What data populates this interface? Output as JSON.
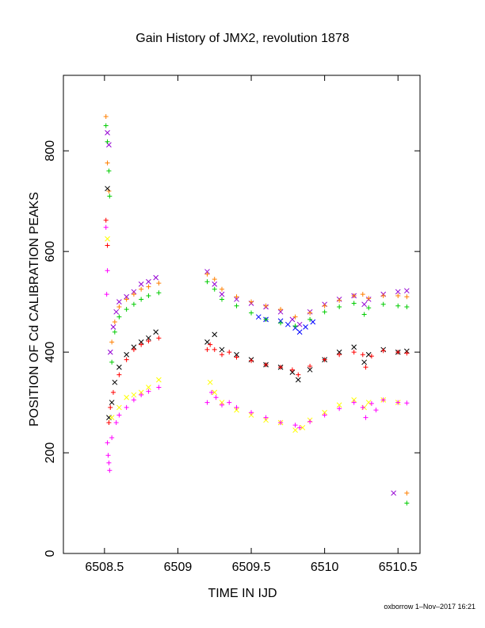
{
  "chart_data": {
    "type": "scatter",
    "title": "Gain History of JMX2, revolution 1878",
    "xlabel": "TIME IN IJD",
    "ylabel": "POSITION OF Cd CALIBRATION PEAKS",
    "xlim": [
      6508.22,
      6510.65
    ],
    "ylim": [
      0,
      950
    ],
    "xticks": [
      6508.5,
      6509,
      6509.5,
      6510,
      6510.5
    ],
    "xtick_labels": [
      "6508.5",
      "6509",
      "6509.5",
      "6510",
      "6510.5"
    ],
    "yticks": [
      0,
      200,
      400,
      600,
      800
    ],
    "ytick_labels": [
      "0",
      "200",
      "400",
      "600",
      "800"
    ],
    "grid": false,
    "footer": "oxborrow  1–Nov–2017 16:21",
    "series": [
      {
        "color": "#9400d3",
        "marker": "x",
        "points": [
          [
            6508.52,
            836
          ],
          [
            6508.53,
            812
          ],
          [
            6508.54,
            400
          ],
          [
            6508.56,
            450
          ],
          [
            6508.58,
            480
          ],
          [
            6508.6,
            500
          ],
          [
            6508.65,
            510
          ],
          [
            6508.7,
            520
          ],
          [
            6508.75,
            535
          ],
          [
            6508.8,
            540
          ],
          [
            6508.85,
            548
          ],
          [
            6509.2,
            560
          ],
          [
            6509.25,
            535
          ],
          [
            6509.3,
            515
          ],
          [
            6509.4,
            505
          ],
          [
            6509.5,
            497
          ],
          [
            6509.6,
            490
          ],
          [
            6509.7,
            480
          ],
          [
            6509.78,
            465
          ],
          [
            6509.83,
            455
          ],
          [
            6509.9,
            480
          ],
          [
            6510.0,
            495
          ],
          [
            6510.1,
            505
          ],
          [
            6510.2,
            512
          ],
          [
            6510.27,
            495
          ],
          [
            6510.3,
            505
          ],
          [
            6510.4,
            515
          ],
          [
            6510.5,
            520
          ],
          [
            6510.56,
            522
          ],
          [
            6510.47,
            120
          ]
        ]
      },
      {
        "color": "#ff7f00",
        "marker": "+",
        "points": [
          [
            6508.51,
            868
          ],
          [
            6508.52,
            776
          ],
          [
            6508.53,
            720
          ],
          [
            6508.55,
            420
          ],
          [
            6508.57,
            460
          ],
          [
            6508.6,
            490
          ],
          [
            6508.65,
            505
          ],
          [
            6508.7,
            515
          ],
          [
            6508.75,
            525
          ],
          [
            6508.8,
            530
          ],
          [
            6508.87,
            537
          ],
          [
            6509.2,
            555
          ],
          [
            6509.25,
            545
          ],
          [
            6509.3,
            525
          ],
          [
            6509.4,
            510
          ],
          [
            6509.5,
            500
          ],
          [
            6509.6,
            492
          ],
          [
            6509.7,
            485
          ],
          [
            6509.8,
            470
          ],
          [
            6509.9,
            478
          ],
          [
            6510.0,
            492
          ],
          [
            6510.1,
            503
          ],
          [
            6510.2,
            512
          ],
          [
            6510.26,
            515
          ],
          [
            6510.3,
            507
          ],
          [
            6510.4,
            512
          ],
          [
            6510.5,
            512
          ],
          [
            6510.56,
            510
          ],
          [
            6510.56,
            120
          ]
        ]
      },
      {
        "color": "#0000ff",
        "marker": "x",
        "points": [
          [
            6509.55,
            470
          ],
          [
            6509.6,
            465
          ],
          [
            6509.7,
            462
          ],
          [
            6509.75,
            455
          ],
          [
            6509.8,
            448
          ],
          [
            6509.83,
            440
          ],
          [
            6509.87,
            450
          ],
          [
            6509.92,
            460
          ]
        ]
      },
      {
        "color": "#00cc00",
        "marker": "+",
        "points": [
          [
            6508.51,
            850
          ],
          [
            6508.52,
            818
          ],
          [
            6508.53,
            760
          ],
          [
            6508.535,
            710
          ],
          [
            6508.55,
            380
          ],
          [
            6508.57,
            440
          ],
          [
            6508.6,
            470
          ],
          [
            6508.65,
            485
          ],
          [
            6508.7,
            495
          ],
          [
            6508.75,
            505
          ],
          [
            6508.8,
            512
          ],
          [
            6508.87,
            518
          ],
          [
            6509.2,
            540
          ],
          [
            6509.25,
            525
          ],
          [
            6509.3,
            505
          ],
          [
            6509.4,
            492
          ],
          [
            6509.5,
            478
          ],
          [
            6509.6,
            465
          ],
          [
            6509.7,
            458
          ],
          [
            6509.8,
            452
          ],
          [
            6509.9,
            465
          ],
          [
            6510.0,
            480
          ],
          [
            6510.1,
            490
          ],
          [
            6510.2,
            497
          ],
          [
            6510.27,
            475
          ],
          [
            6510.3,
            488
          ],
          [
            6510.4,
            495
          ],
          [
            6510.5,
            492
          ],
          [
            6510.56,
            490
          ],
          [
            6510.56,
            100
          ]
        ]
      },
      {
        "color": "#000000",
        "marker": "x",
        "points": [
          [
            6508.52,
            725
          ],
          [
            6508.53,
            270
          ],
          [
            6508.55,
            300
          ],
          [
            6508.57,
            340
          ],
          [
            6508.6,
            370
          ],
          [
            6508.65,
            395
          ],
          [
            6508.7,
            410
          ],
          [
            6508.75,
            420
          ],
          [
            6508.8,
            428
          ],
          [
            6508.85,
            440
          ],
          [
            6509.2,
            420
          ],
          [
            6509.25,
            435
          ],
          [
            6509.3,
            405
          ],
          [
            6509.4,
            395
          ],
          [
            6509.5,
            385
          ],
          [
            6509.6,
            375
          ],
          [
            6509.7,
            370
          ],
          [
            6509.78,
            360
          ],
          [
            6509.82,
            345
          ],
          [
            6509.9,
            365
          ],
          [
            6510.0,
            385
          ],
          [
            6510.1,
            400
          ],
          [
            6510.2,
            410
          ],
          [
            6510.27,
            380
          ],
          [
            6510.3,
            395
          ],
          [
            6510.4,
            405
          ],
          [
            6510.5,
            400
          ],
          [
            6510.56,
            402
          ]
        ]
      },
      {
        "color": "#ff0000",
        "marker": "+",
        "points": [
          [
            6508.51,
            662
          ],
          [
            6508.52,
            612
          ],
          [
            6508.53,
            260
          ],
          [
            6508.54,
            290
          ],
          [
            6508.56,
            320
          ],
          [
            6508.6,
            355
          ],
          [
            6508.65,
            385
          ],
          [
            6508.7,
            405
          ],
          [
            6508.75,
            415
          ],
          [
            6508.8,
            422
          ],
          [
            6508.87,
            428
          ],
          [
            6509.2,
            405
          ],
          [
            6509.22,
            415
          ],
          [
            6509.25,
            405
          ],
          [
            6509.3,
            395
          ],
          [
            6509.35,
            400
          ],
          [
            6509.4,
            390
          ],
          [
            6509.5,
            383
          ],
          [
            6509.6,
            375
          ],
          [
            6509.7,
            370
          ],
          [
            6509.78,
            365
          ],
          [
            6509.82,
            355
          ],
          [
            6509.9,
            372
          ],
          [
            6510.0,
            385
          ],
          [
            6510.1,
            395
          ],
          [
            6510.2,
            400
          ],
          [
            6510.26,
            395
          ],
          [
            6510.28,
            370
          ],
          [
            6510.32,
            392
          ],
          [
            6510.4,
            403
          ],
          [
            6510.5,
            400
          ],
          [
            6510.56,
            398
          ]
        ]
      },
      {
        "color": "#ffff00",
        "marker": "x",
        "points": [
          [
            6508.52,
            625
          ],
          [
            6508.55,
            270
          ],
          [
            6508.6,
            290
          ],
          [
            6508.65,
            310
          ],
          [
            6508.7,
            315
          ],
          [
            6508.75,
            320
          ],
          [
            6508.8,
            330
          ],
          [
            6508.87,
            345
          ],
          [
            6509.22,
            340
          ],
          [
            6509.25,
            320
          ],
          [
            6509.3,
            300
          ],
          [
            6509.4,
            285
          ],
          [
            6509.5,
            275
          ],
          [
            6509.6,
            265
          ],
          [
            6509.7,
            260
          ],
          [
            6509.8,
            245
          ],
          [
            6509.85,
            250
          ],
          [
            6509.9,
            265
          ],
          [
            6510.0,
            280
          ],
          [
            6510.1,
            295
          ],
          [
            6510.2,
            305
          ],
          [
            6510.27,
            290
          ],
          [
            6510.3,
            300
          ],
          [
            6510.4,
            305
          ],
          [
            6510.5,
            300
          ]
        ]
      },
      {
        "color": "#ff00ff",
        "marker": "+",
        "points": [
          [
            6508.51,
            648
          ],
          [
            6508.52,
            562
          ],
          [
            6508.515,
            515
          ],
          [
            6508.52,
            220
          ],
          [
            6508.525,
            195
          ],
          [
            6508.53,
            180
          ],
          [
            6508.535,
            165
          ],
          [
            6508.55,
            230
          ],
          [
            6508.58,
            260
          ],
          [
            6508.6,
            275
          ],
          [
            6508.65,
            290
          ],
          [
            6508.7,
            305
          ],
          [
            6508.75,
            315
          ],
          [
            6508.8,
            322
          ],
          [
            6508.87,
            330
          ],
          [
            6509.2,
            300
          ],
          [
            6509.23,
            320
          ],
          [
            6509.26,
            310
          ],
          [
            6509.3,
            295
          ],
          [
            6509.35,
            300
          ],
          [
            6509.4,
            290
          ],
          [
            6509.5,
            280
          ],
          [
            6509.6,
            270
          ],
          [
            6509.7,
            260
          ],
          [
            6509.8,
            255
          ],
          [
            6509.83,
            250
          ],
          [
            6509.9,
            262
          ],
          [
            6510.0,
            275
          ],
          [
            6510.1,
            288
          ],
          [
            6510.2,
            300
          ],
          [
            6510.26,
            290
          ],
          [
            6510.28,
            270
          ],
          [
            6510.32,
            298
          ],
          [
            6510.35,
            285
          ],
          [
            6510.4,
            305
          ],
          [
            6510.5,
            300
          ],
          [
            6510.56,
            299
          ]
        ]
      }
    ]
  }
}
